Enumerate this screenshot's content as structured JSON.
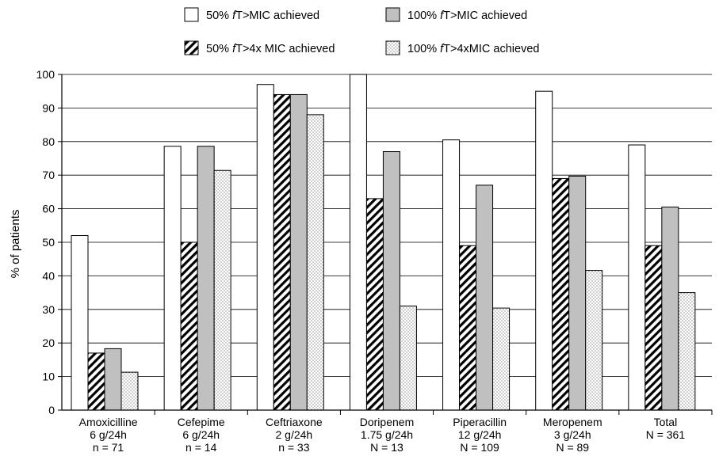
{
  "chart_data": {
    "type": "bar",
    "ylabel": "% of patients",
    "ylim": [
      0,
      100
    ],
    "yticks": [
      0,
      10,
      20,
      30,
      40,
      50,
      60,
      70,
      80,
      90,
      100
    ],
    "grid": true,
    "legend_position": "top",
    "categories": [
      [
        "Amoxicilline",
        "6 g/24h",
        "n = 71"
      ],
      [
        "Cefepime",
        "6 g/24h",
        "n = 14"
      ],
      [
        "Ceftriaxone",
        "2 g/24h",
        "n = 33"
      ],
      [
        "Doripenem",
        "1.75 g/24h",
        "N = 13"
      ],
      [
        "Piperacillin",
        "12 g/24h",
        "N = 109"
      ],
      [
        "Meropenem",
        "3 g/24h",
        "N = 89"
      ],
      [
        "Total",
        "N = 361"
      ]
    ],
    "series": [
      {
        "prefix": "50% ",
        "italic": "f",
        "suffix": "T>MIC achieved",
        "pattern": "white",
        "values": [
          52,
          78.6,
          97,
          100,
          80.5,
          95,
          79
        ]
      },
      {
        "prefix": "50% ",
        "italic": "f",
        "suffix": "T>4x MIC achieved",
        "pattern": "hatch",
        "values": [
          17,
          50,
          94,
          63,
          49,
          69,
          49
        ]
      },
      {
        "prefix": "100% ",
        "italic": "f",
        "suffix": "T>MIC achieved",
        "pattern": "gray",
        "values": [
          18.3,
          78.6,
          94,
          77,
          67,
          69.7,
          60.5
        ]
      },
      {
        "prefix": "100% ",
        "italic": "f",
        "suffix": "T>4xMIC achieved",
        "pattern": "dots",
        "values": [
          11.3,
          71.4,
          88,
          31,
          30.4,
          41.6,
          35
        ]
      }
    ]
  }
}
